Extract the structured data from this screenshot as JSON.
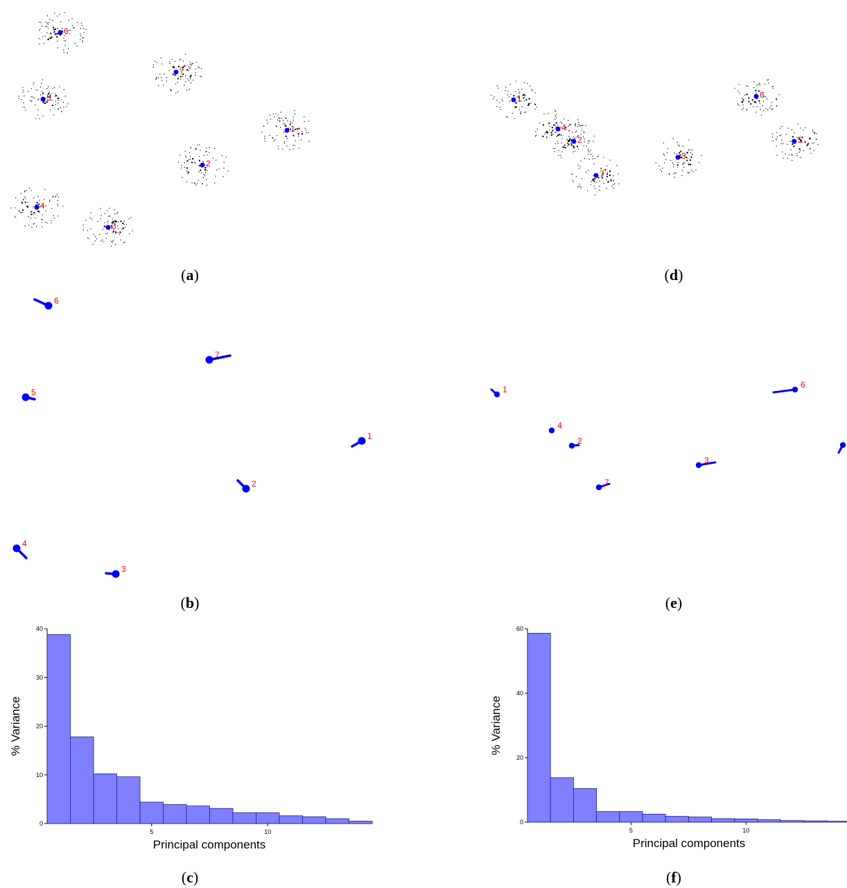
{
  "captions": {
    "a": "a",
    "b": "b",
    "c": "c",
    "d": "d",
    "e": "e",
    "f": "f"
  },
  "colors": {
    "marker": "#0000ff",
    "label": "#ff0000",
    "bar_fill": "#8080ff",
    "bar_stroke": "#1a1a8c",
    "scatter": "#000000"
  },
  "chart_data": [
    {
      "panel": "a",
      "type": "scatter",
      "title": "",
      "landmarks": [
        {
          "label": "1",
          "x": 414,
          "y": 188
        },
        {
          "label": "2",
          "x": 292,
          "y": 238
        },
        {
          "label": "3",
          "x": 156,
          "y": 328
        },
        {
          "label": "4",
          "x": 53,
          "y": 299
        },
        {
          "label": "5",
          "x": 62,
          "y": 143
        },
        {
          "label": "6",
          "x": 87,
          "y": 47
        },
        {
          "label": "7",
          "x": 254,
          "y": 104
        }
      ],
      "legend": "none",
      "grid": false
    },
    {
      "panel": "b",
      "type": "scatter",
      "title": "",
      "landmarks": [
        {
          "label": "1",
          "x": 522,
          "y": 636,
          "dx": -14,
          "dy": 8
        },
        {
          "label": "2",
          "x": 355,
          "y": 705,
          "dx": -12,
          "dy": -12
        },
        {
          "label": "3",
          "x": 167,
          "y": 828,
          "dx": -14,
          "dy": -1
        },
        {
          "label": "4",
          "x": 24,
          "y": 791,
          "dx": 14,
          "dy": 14
        },
        {
          "label": "5",
          "x": 37,
          "y": 573,
          "dx": 13,
          "dy": 3
        },
        {
          "label": "6",
          "x": 70,
          "y": 441,
          "dx": -20,
          "dy": -9
        },
        {
          "label": "7",
          "x": 302,
          "y": 519,
          "dx": 30,
          "dy": -6
        }
      ],
      "legend": "none",
      "grid": false
    },
    {
      "panel": "c",
      "type": "bar",
      "title": "",
      "xlabel": "Principal components",
      "ylabel": "% Variance",
      "categories": [
        1,
        2,
        3,
        4,
        5,
        6,
        7,
        8,
        9,
        10,
        11,
        12,
        13,
        14
      ],
      "values": [
        38.8,
        17.8,
        10.2,
        9.6,
        4.4,
        3.9,
        3.6,
        3.1,
        2.2,
        2.2,
        1.6,
        1.4,
        1.0,
        0.5
      ],
      "yticks": [
        0,
        10,
        20,
        30,
        40
      ],
      "xticks": [
        5,
        10
      ],
      "ylim": [
        0,
        40
      ],
      "legend": "none",
      "grid": false
    },
    {
      "panel": "d",
      "type": "scatter",
      "title": "",
      "landmarks": [
        {
          "label": "1",
          "x": 741,
          "y": 144
        },
        {
          "label": "2",
          "x": 828,
          "y": 204
        },
        {
          "label": "3",
          "x": 978,
          "y": 227
        },
        {
          "label": "4",
          "x": 805,
          "y": 186
        },
        {
          "label": "5",
          "x": 1146,
          "y": 204
        },
        {
          "label": "6",
          "x": 1091,
          "y": 139
        },
        {
          "label": "7",
          "x": 860,
          "y": 253
        }
      ],
      "legend": "none",
      "grid": false
    },
    {
      "panel": "e",
      "type": "scatter",
      "title": "",
      "landmarks": [
        {
          "label": "1",
          "x": 717,
          "y": 569,
          "dx": -8,
          "dy": -7
        },
        {
          "label": "2",
          "x": 825,
          "y": 643,
          "dx": 10,
          "dy": -1
        },
        {
          "label": "3",
          "x": 1008,
          "y": 671,
          "dx": 24,
          "dy": -4
        },
        {
          "label": "4",
          "x": 796,
          "y": 621,
          "dx": 0,
          "dy": 0
        },
        {
          "label": "6",
          "x": 1147,
          "y": 562,
          "dx": -31,
          "dy": 4
        },
        {
          "label": "7",
          "x": 864,
          "y": 703,
          "dx": 15,
          "dy": -5
        },
        {
          "label": "",
          "x": 1216,
          "y": 642,
          "dx": -6,
          "dy": 11
        }
      ],
      "legend": "none",
      "grid": false
    },
    {
      "panel": "f",
      "type": "bar",
      "title": "",
      "xlabel": "Principal components",
      "ylabel": "% Variance",
      "categories": [
        1,
        2,
        3,
        4,
        5,
        6,
        7,
        8,
        9,
        10,
        11,
        12,
        13,
        14
      ],
      "values": [
        58.6,
        13.8,
        10.4,
        3.3,
        3.3,
        2.5,
        1.8,
        1.6,
        1.1,
        1.0,
        0.8,
        0.5,
        0.4,
        0.3
      ],
      "yticks": [
        0,
        20,
        40,
        60
      ],
      "xticks": [
        5,
        10
      ],
      "ylim": [
        0,
        60
      ],
      "legend": "none",
      "grid": false
    }
  ]
}
